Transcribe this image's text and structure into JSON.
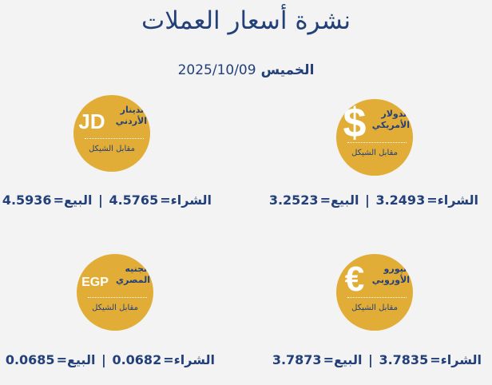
{
  "title": "نشرة أسعار العملات",
  "date": {
    "day": "الخميس",
    "value": "2025/10/09"
  },
  "colors": {
    "navy": "#23407a",
    "gold": "#e2ad36",
    "background": "#f3f3f3"
  },
  "currencies": [
    {
      "symbol": "$",
      "name": "الدولار الأمريكي",
      "against": "مقابل الشيكل",
      "buy_label": "الشراء=",
      "buy": "3.2493",
      "sell_label": "البيع=",
      "sell": "3.2523",
      "separator": "|"
    },
    {
      "symbol": "JD",
      "name": "الدينار الأردني",
      "against": "مقابل الشيكل",
      "buy_label": "الشراء=",
      "buy": "4.5765",
      "sell_label": "البيع=",
      "sell": "4.5936",
      "separator": "|"
    },
    {
      "symbol": "€",
      "name": "اليورو الأوروبي",
      "against": "مقابل الشيكل",
      "buy_label": "الشراء=",
      "buy": "3.7835",
      "sell_label": "البيع=",
      "sell": "3.7873",
      "separator": "|"
    },
    {
      "symbol": "EGP",
      "name": "الجنيه المصري",
      "against": "مقابل الشيكل",
      "buy_label": "الشراء=",
      "buy": "0.0682",
      "sell_label": "البيع=",
      "sell": "0.0685",
      "separator": "|"
    }
  ]
}
